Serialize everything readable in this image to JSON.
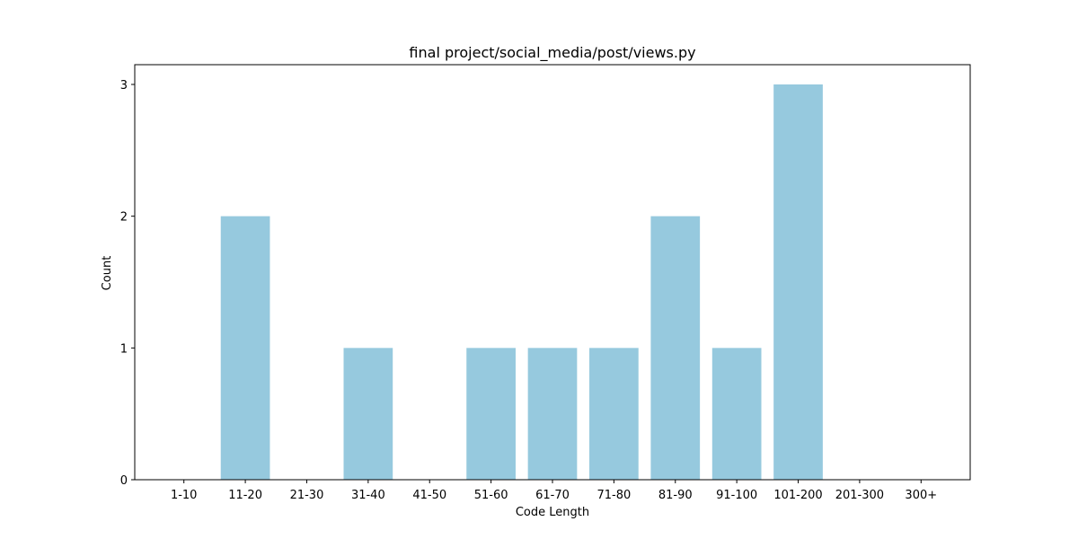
{
  "chart_data": {
    "type": "bar",
    "title": "final project/social_media/post/views.py",
    "xlabel": "Code Length",
    "ylabel": "Count",
    "categories": [
      "1-10",
      "11-20",
      "21-30",
      "31-40",
      "41-50",
      "51-60",
      "61-70",
      "71-80",
      "81-90",
      "91-100",
      "101-200",
      "201-300",
      "300+"
    ],
    "values": [
      0,
      2,
      0,
      1,
      0,
      1,
      1,
      1,
      2,
      1,
      3,
      0,
      0
    ],
    "ylim": [
      0,
      3.15
    ],
    "yticks": [
      0,
      1,
      2,
      3
    ],
    "grid": false,
    "bar_color": "#96c9de"
  }
}
